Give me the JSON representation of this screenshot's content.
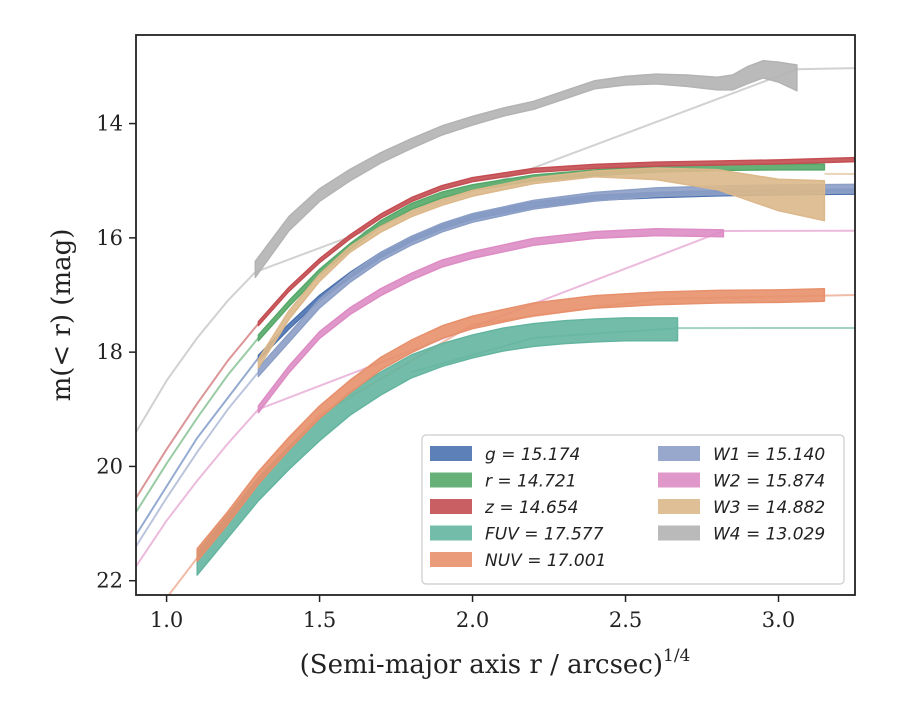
{
  "chart_data": {
    "type": "line",
    "xlabel": "(Semi-major axis r / arcsec)",
    "xlabel_exponent": "1/4",
    "ylabel": "m(< r) (mag)",
    "xlim": [
      0.9,
      3.25
    ],
    "ylim": [
      22.25,
      12.45
    ],
    "y_inverted": true,
    "grid": false,
    "legend_position": "lower-right",
    "x_ticks": [
      "1.0",
      "1.5",
      "2.0",
      "2.5",
      "3.0"
    ],
    "y_ticks": [
      "14",
      "16",
      "18",
      "20",
      "22"
    ],
    "series": [
      {
        "name": "g = 15.174",
        "color": "#4c72b0",
        "x": [
          1.3,
          1.4,
          1.5,
          1.6,
          1.7,
          1.8,
          1.9,
          2.0,
          2.2,
          2.4,
          2.6,
          2.8,
          3.0,
          3.25
        ],
        "y": [
          18.1,
          17.55,
          17.05,
          16.65,
          16.3,
          16.02,
          15.8,
          15.63,
          15.42,
          15.3,
          15.25,
          15.22,
          15.2,
          15.19
        ],
        "band": 0.09,
        "ext_x": [
          0.9,
          1.0,
          1.1,
          1.2,
          1.3
        ],
        "ext_y": [
          21.2,
          20.35,
          19.5,
          18.8,
          18.1
        ]
      },
      {
        "name": "r = 14.721",
        "color": "#55a868",
        "x": [
          1.3,
          1.4,
          1.5,
          1.6,
          1.7,
          1.8,
          1.9,
          2.0,
          2.2,
          2.4,
          2.6,
          2.8,
          3.0,
          3.15
        ],
        "y": [
          17.75,
          17.15,
          16.6,
          16.15,
          15.75,
          15.45,
          15.25,
          15.12,
          14.95,
          14.86,
          14.8,
          14.77,
          14.76,
          14.76
        ],
        "band": 0.1,
        "ext_x": [
          0.9,
          1.0,
          1.1,
          1.2,
          1.3
        ],
        "ext_y": [
          20.8,
          19.95,
          19.15,
          18.4,
          17.75
        ]
      },
      {
        "name": "z = 14.654",
        "color": "#c44e52",
        "x": [
          1.3,
          1.4,
          1.5,
          1.6,
          1.7,
          1.8,
          1.9,
          2.0,
          2.2,
          2.4,
          2.6,
          2.8,
          3.0,
          3.25
        ],
        "y": [
          17.5,
          16.9,
          16.4,
          15.98,
          15.62,
          15.33,
          15.12,
          14.98,
          14.82,
          14.75,
          14.71,
          14.69,
          14.67,
          14.63
        ],
        "band": 0.07,
        "ext_x": [
          0.9,
          1.0,
          1.1,
          1.2,
          1.3
        ],
        "ext_y": [
          20.55,
          19.7,
          18.9,
          18.15,
          17.5
        ]
      },
      {
        "name": "FUV = 17.577",
        "color": "#64b5a0",
        "x": [
          1.1,
          1.2,
          1.3,
          1.4,
          1.5,
          1.6,
          1.7,
          1.8,
          1.9,
          2.0,
          2.1,
          2.2,
          2.3,
          2.4,
          2.5,
          2.67
        ],
        "y": [
          21.7,
          21.05,
          20.4,
          19.85,
          19.35,
          18.9,
          18.55,
          18.25,
          18.05,
          17.9,
          17.78,
          17.7,
          17.65,
          17.62,
          17.6,
          17.6
        ],
        "band": 0.4,
        "ext_x": [
          1.8,
          2.2,
          2.67,
          3.25
        ],
        "ext_y": [
          18.35,
          17.75,
          17.58,
          17.577
        ]
      },
      {
        "name": "NUV = 17.001",
        "color": "#e7906c",
        "x": [
          1.1,
          1.2,
          1.3,
          1.4,
          1.5,
          1.6,
          1.7,
          1.8,
          1.9,
          2.0,
          2.2,
          2.4,
          2.6,
          2.8,
          3.0,
          3.15
        ],
        "y": [
          21.55,
          20.9,
          20.2,
          19.6,
          19.05,
          18.6,
          18.2,
          17.9,
          17.65,
          17.48,
          17.25,
          17.12,
          17.06,
          17.03,
          17.02,
          17.0
        ],
        "band": 0.22,
        "ext_x": [
          1.0,
          1.1,
          1.2,
          1.3,
          1.5,
          2.0,
          2.6,
          3.25
        ],
        "ext_y": [
          22.3,
          21.6,
          20.95,
          20.25,
          19.1,
          17.52,
          17.07,
          17.0
        ]
      },
      {
        "name": "W1 = 15.140",
        "color": "#8c9fc6",
        "x": [
          1.3,
          1.4,
          1.5,
          1.6,
          1.7,
          1.8,
          1.9,
          2.0,
          2.2,
          2.4,
          2.6,
          2.8,
          3.0,
          3.25
        ],
        "y": [
          18.35,
          17.75,
          17.15,
          16.7,
          16.33,
          16.05,
          15.82,
          15.65,
          15.42,
          15.28,
          15.2,
          15.17,
          15.15,
          15.14
        ],
        "band": 0.15,
        "ext_x": [
          0.9,
          1.0,
          1.1,
          1.2,
          1.3
        ],
        "ext_y": [
          21.4,
          20.55,
          19.75,
          19.0,
          18.35
        ]
      },
      {
        "name": "W2 = 15.874",
        "color": "#dd8cc4",
        "x": [
          1.3,
          1.4,
          1.5,
          1.6,
          1.7,
          1.8,
          1.9,
          2.0,
          2.2,
          2.4,
          2.6,
          2.82
        ],
        "y": [
          19.0,
          18.3,
          17.7,
          17.28,
          16.95,
          16.68,
          16.45,
          16.3,
          16.07,
          15.95,
          15.9,
          15.92
        ],
        "band": 0.12,
        "ext_x": [
          0.9,
          1.0,
          1.1,
          1.2,
          1.3,
          2.82,
          3.25
        ],
        "ext_y": [
          21.75,
          20.95,
          20.25,
          19.6,
          19.0,
          15.88,
          15.874
        ]
      },
      {
        "name": "W3 = 14.882",
        "color": "#dcb88a",
        "x": [
          1.3,
          1.4,
          1.5,
          1.6,
          1.7,
          1.8,
          1.9,
          2.0,
          2.2,
          2.4,
          2.6,
          2.8,
          3.0,
          3.15
        ],
        "y": [
          18.2,
          17.35,
          16.7,
          16.2,
          15.85,
          15.58,
          15.38,
          15.22,
          15.0,
          14.88,
          14.88,
          14.98,
          15.25,
          15.35
        ],
        "band": [
          0.15,
          0.15,
          0.12,
          0.1,
          0.1,
          0.1,
          0.1,
          0.1,
          0.1,
          0.1,
          0.2,
          0.35,
          0.55,
          0.7
        ],
        "ext_x": [
          3.15,
          3.25
        ],
        "ext_y": [
          14.88,
          14.882
        ]
      },
      {
        "name": "W4 = 13.029",
        "color": "#b3b3b3",
        "x": [
          1.29,
          1.4,
          1.5,
          1.6,
          1.7,
          1.8,
          1.9,
          2.0,
          2.1,
          2.2,
          2.3,
          2.4,
          2.5,
          2.6,
          2.7,
          2.8,
          2.85,
          2.9,
          2.95,
          3.0,
          3.06
        ],
        "y": [
          16.55,
          15.75,
          15.25,
          14.9,
          14.6,
          14.35,
          14.12,
          13.95,
          13.8,
          13.68,
          13.5,
          13.32,
          13.25,
          13.22,
          13.25,
          13.3,
          13.28,
          13.15,
          13.05,
          13.1,
          13.2
        ],
        "band": [
          0.28,
          0.25,
          0.22,
          0.2,
          0.18,
          0.17,
          0.16,
          0.15,
          0.14,
          0.14,
          0.14,
          0.14,
          0.15,
          0.17,
          0.2,
          0.22,
          0.26,
          0.3,
          0.3,
          0.35,
          0.45
        ],
        "ext_x": [
          0.9,
          1.0,
          1.1,
          1.2,
          1.29,
          3.06,
          3.25
        ],
        "ext_y": [
          19.4,
          18.5,
          17.75,
          17.1,
          16.6,
          13.05,
          13.029
        ]
      }
    ]
  }
}
